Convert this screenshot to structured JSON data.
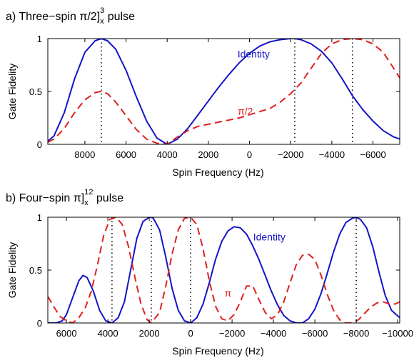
{
  "chart_data": [
    {
      "type": "line",
      "title": "a) Three−spin π/2]ₓ³ pulse",
      "title_parts": {
        "main": "a) Three−spin π/2]",
        "sup": "3",
        "sub": "x",
        "suffix": " pulse"
      },
      "xlabel": "Spin Frequency (Hz)",
      "ylabel": "Gate Fidelity",
      "xlim": [
        9800,
        -7300
      ],
      "x_reversed": true,
      "ylim": [
        0,
        1
      ],
      "x_ticks": [
        8000,
        6000,
        4000,
        2000,
        0,
        -2000,
        -4000,
        -6000
      ],
      "x_tick_labels": [
        "8000",
        "6000",
        "4000",
        "2000",
        "0",
        "−2000",
        "−4000",
        "−6000"
      ],
      "y_ticks": [
        0,
        0.5,
        1
      ],
      "y_tick_labels": [
        "0",
        "0.5",
        "1"
      ],
      "grid": false,
      "vertical_markers": [
        7200,
        -2200,
        -5000
      ],
      "series": [
        {
          "name": "Identity",
          "color": "#1515c8",
          "style": "solid",
          "x": [
            9800,
            9500,
            9000,
            8500,
            8000,
            7500,
            7200,
            6900,
            6500,
            6000,
            5500,
            5000,
            4500,
            4000,
            3500,
            3000,
            2500,
            2000,
            1500,
            1000,
            500,
            0,
            -500,
            -1000,
            -1500,
            -2000,
            -2200,
            -2500,
            -3000,
            -3500,
            -4000,
            -4500,
            -5000,
            -5500,
            -6000,
            -6500,
            -7000,
            -7300
          ],
          "values": [
            0.03,
            0.08,
            0.3,
            0.62,
            0.87,
            0.98,
            1.0,
            0.98,
            0.9,
            0.7,
            0.45,
            0.22,
            0.06,
            0.0,
            0.05,
            0.15,
            0.28,
            0.41,
            0.54,
            0.66,
            0.77,
            0.86,
            0.93,
            0.97,
            0.99,
            1.0,
            1.0,
            0.99,
            0.95,
            0.88,
            0.77,
            0.62,
            0.46,
            0.33,
            0.22,
            0.13,
            0.07,
            0.05
          ]
        },
        {
          "name": "π/2",
          "color": "#e02020",
          "style": "dashed",
          "x": [
            9800,
            9500,
            9000,
            8500,
            8000,
            7500,
            7200,
            6900,
            6500,
            6000,
            5500,
            5000,
            4500,
            4000,
            3500,
            3000,
            2500,
            2000,
            1500,
            1000,
            500,
            0,
            -500,
            -1000,
            -1500,
            -2000,
            -2500,
            -3000,
            -3500,
            -4000,
            -4500,
            -5000,
            -5500,
            -6000,
            -6500,
            -7000,
            -7300
          ],
          "values": [
            0.02,
            0.05,
            0.15,
            0.3,
            0.42,
            0.49,
            0.5,
            0.48,
            0.4,
            0.27,
            0.14,
            0.05,
            0.01,
            0.0,
            0.07,
            0.13,
            0.17,
            0.19,
            0.21,
            0.23,
            0.25,
            0.28,
            0.31,
            0.34,
            0.4,
            0.48,
            0.58,
            0.72,
            0.86,
            0.95,
            0.99,
            1.0,
            0.99,
            0.95,
            0.87,
            0.72,
            0.63
          ]
        }
      ],
      "annotations": [
        {
          "text": "Identity",
          "x": -200,
          "y": 0.82,
          "color": "#1515c8"
        },
        {
          "text": "π/2",
          "x": 200,
          "y": 0.28,
          "color": "#e02020"
        }
      ]
    },
    {
      "type": "line",
      "title": "b) Four−spin π]ₓ¹² pulse",
      "title_parts": {
        "main": "b) Four−spin π]",
        "sup": "12",
        "sub": "x",
        "suffix": " pulse"
      },
      "xlabel": "Spin Frequency (Hz)",
      "ylabel": "Gate Fidelity",
      "xlim": [
        6900,
        -10100
      ],
      "x_reversed": true,
      "ylim": [
        0,
        1
      ],
      "x_ticks": [
        6000,
        4000,
        2000,
        0,
        -2000,
        -4000,
        -6000,
        -8000,
        -10000
      ],
      "x_tick_labels": [
        "6000",
        "4000",
        "2000",
        "0",
        "−2000",
        "−4000",
        "−6000",
        "−8000",
        "−10000"
      ],
      "y_ticks": [
        0,
        0.5,
        1
      ],
      "y_tick_labels": [
        "0",
        "0.5",
        "1"
      ],
      "grid": false,
      "vertical_markers": [
        3800,
        1900,
        0,
        -8000
      ],
      "series": [
        {
          "name": "Identity",
          "color": "#1515c8",
          "style": "solid",
          "x": [
            6900,
            6500,
            6200,
            6000,
            5700,
            5400,
            5200,
            5000,
            4700,
            4400,
            4100,
            3800,
            3500,
            3200,
            2900,
            2600,
            2300,
            2000,
            1900,
            1800,
            1500,
            1200,
            900,
            600,
            300,
            0,
            -300,
            -600,
            -900,
            -1200,
            -1500,
            -1800,
            -2100,
            -2400,
            -2700,
            -3000,
            -3300,
            -3600,
            -3900,
            -4200,
            -4500,
            -4800,
            -5100,
            -5400,
            -5700,
            -6000,
            -6300,
            -6600,
            -6900,
            -7200,
            -7500,
            -7800,
            -8000,
            -8200,
            -8500,
            -8800,
            -9100,
            -9400,
            -9700,
            -10100
          ],
          "values": [
            0.0,
            0.0,
            0.02,
            0.08,
            0.24,
            0.4,
            0.45,
            0.43,
            0.3,
            0.12,
            0.02,
            0.0,
            0.05,
            0.2,
            0.5,
            0.8,
            0.96,
            1.0,
            1.0,
            0.99,
            0.88,
            0.62,
            0.33,
            0.12,
            0.02,
            0.0,
            0.05,
            0.18,
            0.38,
            0.6,
            0.77,
            0.87,
            0.91,
            0.9,
            0.84,
            0.73,
            0.6,
            0.45,
            0.3,
            0.17,
            0.07,
            0.02,
            0.0,
            0.0,
            0.04,
            0.13,
            0.28,
            0.47,
            0.67,
            0.84,
            0.95,
            0.99,
            1.0,
            0.98,
            0.9,
            0.72,
            0.48,
            0.26,
            0.12,
            0.05
          ]
        },
        {
          "name": "π",
          "color": "#e02020",
          "style": "dashed",
          "x": [
            6900,
            6600,
            6300,
            6000,
            5700,
            5400,
            5100,
            4800,
            4500,
            4200,
            3900,
            3600,
            3300,
            3000,
            2700,
            2400,
            2100,
            1900,
            1500,
            1200,
            900,
            600,
            300,
            0,
            -300,
            -600,
            -900,
            -1200,
            -1500,
            -1800,
            -2100,
            -2400,
            -2700,
            -3000,
            -3300,
            -3600,
            -3900,
            -4200,
            -4500,
            -4800,
            -5100,
            -5400,
            -5700,
            -6000,
            -6300,
            -6600,
            -6900,
            -7200,
            -7500,
            -7800,
            -8100,
            -8400,
            -8700,
            -9000,
            -9300,
            -9600,
            -9900,
            -10100
          ],
          "values": [
            0.25,
            0.15,
            0.06,
            0.02,
            0.0,
            0.05,
            0.14,
            0.3,
            0.55,
            0.83,
            0.98,
            1.0,
            0.93,
            0.72,
            0.44,
            0.18,
            0.03,
            0.0,
            0.1,
            0.35,
            0.65,
            0.88,
            0.99,
            1.0,
            0.93,
            0.7,
            0.4,
            0.16,
            0.04,
            0.02,
            0.08,
            0.2,
            0.35,
            0.35,
            0.22,
            0.1,
            0.04,
            0.08,
            0.2,
            0.38,
            0.55,
            0.64,
            0.65,
            0.6,
            0.45,
            0.27,
            0.12,
            0.03,
            0.0,
            0.0,
            0.03,
            0.09,
            0.15,
            0.19,
            0.2,
            0.18,
            0.18,
            0.2
          ]
        }
      ],
      "annotations": [
        {
          "text": "Identity",
          "x": -3800,
          "y": 0.78,
          "color": "#1515c8"
        },
        {
          "text": "π",
          "x": -1800,
          "y": 0.25,
          "color": "#e02020"
        }
      ]
    }
  ]
}
